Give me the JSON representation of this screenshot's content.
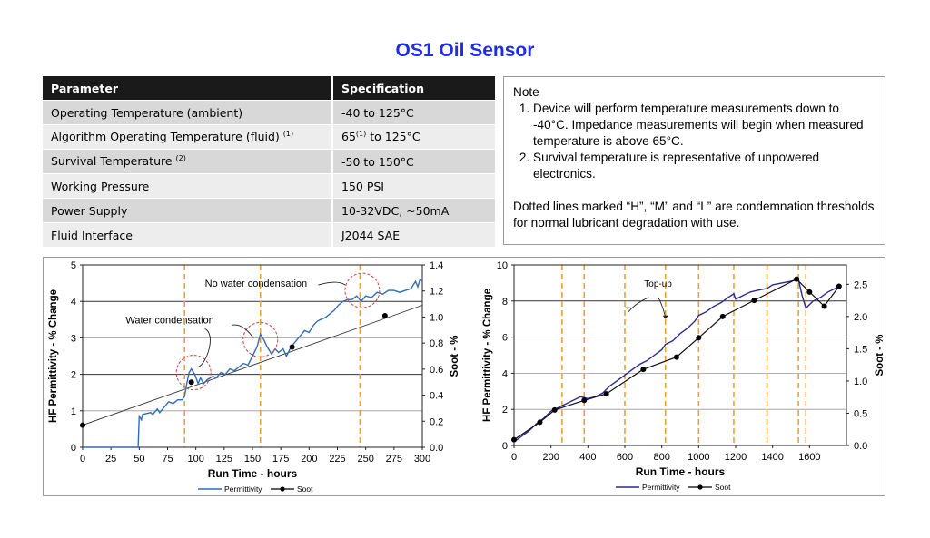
{
  "page": {
    "title": "OS1 Oil Sensor"
  },
  "spec_table": {
    "headers": [
      "Parameter",
      "Specification"
    ],
    "rows": [
      {
        "param": "Operating Temperature (ambient)",
        "sup_p": "",
        "spec": "-40 to 125°C",
        "sup_s": "",
        "spec_rest": ""
      },
      {
        "param": "Algorithm Operating Temperature  (fluid) ",
        "sup_p": "(1)",
        "spec": "65",
        "sup_s": "(1)",
        "spec_rest": " to 125°C"
      },
      {
        "param": "Survival Temperature ",
        "sup_p": "(2)",
        "spec": "-50 to 150°C",
        "sup_s": "",
        "spec_rest": ""
      },
      {
        "param": "Working Pressure",
        "sup_p": "",
        "spec": "150 PSI",
        "sup_s": "",
        "spec_rest": ""
      },
      {
        "param": "Power Supply",
        "sup_p": "",
        "spec": "10-32VDC, ~50mA",
        "sup_s": "",
        "spec_rest": ""
      },
      {
        "param": "Fluid Interface",
        "sup_p": "",
        "spec": "J2044 SAE",
        "sup_s": "",
        "spec_rest": ""
      }
    ]
  },
  "note": {
    "heading": "Note",
    "items": [
      "Device will perform temperature measurements down to -40°C. Impedance  measurements will begin when measured temperature is above 65°C.",
      "Survival temperature is representative of unpowered electronics."
    ],
    "footer": "Dotted lines marked “H”, “M” and “L” are condemnation thresholds for normal lubricant degradation with use."
  },
  "colors": {
    "title": "#1f2ee0",
    "permittivity": "#2f6db8",
    "permittivity_right": "#2b2a8f",
    "threshold": "#f0a030",
    "annotation_circle": "#d04040"
  },
  "chart_data": [
    {
      "type": "line",
      "xlabel": "Run Time  -  hours",
      "ylabel": "HF Permittivity  -  % Change",
      "y2label": "Soot  -  %",
      "xlim": [
        0,
        300
      ],
      "ylim": [
        0,
        5
      ],
      "y2lim": [
        0,
        1.4
      ],
      "x_ticks": [
        0,
        25,
        50,
        75,
        100,
        125,
        150,
        175,
        200,
        225,
        250,
        275,
        300
      ],
      "y_ticks": [
        0,
        1,
        2,
        3,
        4,
        5
      ],
      "y2_ticks": [
        "0.0",
        "0.2",
        "0.4",
        "0.6",
        "0.8",
        "1.0",
        "1.2",
        "1.4"
      ],
      "grid_major_y": [
        2,
        4
      ],
      "grid_minor_y": [
        1,
        3
      ],
      "thresholds_x": [
        90,
        157,
        245
      ],
      "series": [
        {
          "name": "Permittivity",
          "axis": "left",
          "points": [
            [
              0,
              0
            ],
            [
              49,
              0
            ],
            [
              50,
              0.85
            ],
            [
              52,
              0.75
            ],
            [
              53,
              0.9
            ],
            [
              60,
              0.95
            ],
            [
              62,
              0.9
            ],
            [
              66,
              1.05
            ],
            [
              68,
              0.95
            ],
            [
              72,
              1.1
            ],
            [
              76,
              1.25
            ],
            [
              80,
              1.2
            ],
            [
              84,
              1.3
            ],
            [
              88,
              1.3
            ],
            [
              90,
              1.4
            ],
            [
              92,
              1.75
            ],
            [
              94,
              2.05
            ],
            [
              96,
              2.15
            ],
            [
              99,
              2.0
            ],
            [
              102,
              1.75
            ],
            [
              104,
              1.9
            ],
            [
              107,
              1.75
            ],
            [
              110,
              1.85
            ],
            [
              115,
              1.95
            ],
            [
              118,
              1.9
            ],
            [
              122,
              2.05
            ],
            [
              126,
              2.0
            ],
            [
              130,
              2.15
            ],
            [
              134,
              2.1
            ],
            [
              138,
              2.2
            ],
            [
              142,
              2.3
            ],
            [
              146,
              2.25
            ],
            [
              150,
              2.5
            ],
            [
              154,
              2.75
            ],
            [
              157,
              3.1
            ],
            [
              160,
              2.95
            ],
            [
              163,
              2.75
            ],
            [
              167,
              2.55
            ],
            [
              170,
              2.7
            ],
            [
              173,
              2.6
            ],
            [
              177,
              2.7
            ],
            [
              180,
              2.5
            ],
            [
              184,
              2.75
            ],
            [
              188,
              2.9
            ],
            [
              192,
              3.05
            ],
            [
              196,
              3.2
            ],
            [
              200,
              3.15
            ],
            [
              204,
              3.35
            ],
            [
              207,
              3.45
            ],
            [
              210,
              3.5
            ],
            [
              214,
              3.55
            ],
            [
              218,
              3.65
            ],
            [
              222,
              3.75
            ],
            [
              226,
              3.9
            ],
            [
              230,
              4.0
            ],
            [
              234,
              4.05
            ],
            [
              238,
              4.05
            ],
            [
              242,
              4.15
            ],
            [
              246,
              4.0
            ],
            [
              250,
              4.15
            ],
            [
              255,
              4.1
            ],
            [
              260,
              4.25
            ],
            [
              265,
              4.2
            ],
            [
              270,
              4.3
            ],
            [
              275,
              4.3
            ],
            [
              280,
              4.25
            ],
            [
              285,
              4.3
            ],
            [
              290,
              4.35
            ],
            [
              294,
              4.55
            ],
            [
              296,
              4.4
            ],
            [
              298,
              4.6
            ],
            [
              300,
              4.55
            ]
          ]
        },
        {
          "name": "Soot",
          "axis": "right",
          "points": [
            [
              0,
              0.17
            ],
            [
              96,
              0.5
            ],
            [
              185,
              0.77
            ],
            [
              267,
              1.01
            ]
          ]
        }
      ],
      "trend_line": {
        "axis": "right",
        "points": [
          [
            0,
            0.17
          ],
          [
            300,
            1.09
          ]
        ]
      },
      "annotations": [
        {
          "text": "No water condensation"
        },
        {
          "text": "Water condensation"
        }
      ]
    },
    {
      "type": "line",
      "xlabel": "Run Time  -  hours",
      "ylabel": "HF Permittivity  -  % Change",
      "y2label": "Soot  -  %",
      "xlim": [
        0,
        1800
      ],
      "ylim": [
        0,
        10
      ],
      "y2lim": [
        0,
        2.8
      ],
      "x_ticks": [
        0,
        200,
        400,
        600,
        800,
        1000,
        1200,
        1400,
        1600
      ],
      "y_ticks": [
        0,
        2,
        4,
        6,
        8,
        10
      ],
      "y2_ticks": [
        "0.0",
        "0.5",
        "1.0",
        "1.5",
        "2.0",
        "2.5"
      ],
      "grid_major_y": [
        8
      ],
      "grid_minor_y": [
        2,
        4,
        6
      ],
      "thresholds_x": [
        260,
        380,
        600,
        820,
        1000,
        1190,
        1370,
        1540,
        1580
      ],
      "series": [
        {
          "name": "Permittivity",
          "axis": "left",
          "points": [
            [
              0,
              0.2
            ],
            [
              40,
              0.5
            ],
            [
              80,
              0.8
            ],
            [
              120,
              1.2
            ],
            [
              160,
              1.5
            ],
            [
              200,
              1.9
            ],
            [
              240,
              2.1
            ],
            [
              280,
              2.3
            ],
            [
              320,
              2.5
            ],
            [
              360,
              2.7
            ],
            [
              400,
              2.6
            ],
            [
              440,
              2.7
            ],
            [
              480,
              2.9
            ],
            [
              520,
              3.3
            ],
            [
              560,
              3.6
            ],
            [
              600,
              3.9
            ],
            [
              640,
              4.2
            ],
            [
              680,
              4.5
            ],
            [
              720,
              4.7
            ],
            [
              760,
              5.0
            ],
            [
              800,
              5.3
            ],
            [
              820,
              5.6
            ],
            [
              860,
              5.8
            ],
            [
              900,
              6.2
            ],
            [
              940,
              6.5
            ],
            [
              980,
              6.9
            ],
            [
              1000,
              7.2
            ],
            [
              1040,
              7.4
            ],
            [
              1080,
              7.7
            ],
            [
              1120,
              7.9
            ],
            [
              1160,
              8.2
            ],
            [
              1190,
              8.4
            ],
            [
              1200,
              8.1
            ],
            [
              1240,
              8.3
            ],
            [
              1280,
              8.5
            ],
            [
              1320,
              8.6
            ],
            [
              1370,
              8.7
            ],
            [
              1400,
              8.9
            ],
            [
              1450,
              9.0
            ],
            [
              1500,
              9.1
            ],
            [
              1540,
              9.2
            ],
            [
              1560,
              8.3
            ],
            [
              1580,
              7.6
            ],
            [
              1600,
              7.8
            ],
            [
              1620,
              8.0
            ],
            [
              1660,
              8.2
            ],
            [
              1700,
              8.5
            ],
            [
              1740,
              8.7
            ],
            [
              1760,
              8.8
            ]
          ]
        },
        {
          "name": "Soot",
          "axis": "right",
          "points": [
            [
              0,
              0.09
            ],
            [
              140,
              0.36
            ],
            [
              220,
              0.55
            ],
            [
              380,
              0.7
            ],
            [
              500,
              0.8
            ],
            [
              700,
              1.18
            ],
            [
              880,
              1.37
            ],
            [
              1000,
              1.67
            ],
            [
              1130,
              2.0
            ],
            [
              1300,
              2.25
            ],
            [
              1530,
              2.58
            ],
            [
              1600,
              2.38
            ],
            [
              1680,
              2.16
            ],
            [
              1760,
              2.47
            ]
          ]
        }
      ],
      "annotations": [
        {
          "text": "Top-up"
        }
      ]
    }
  ]
}
